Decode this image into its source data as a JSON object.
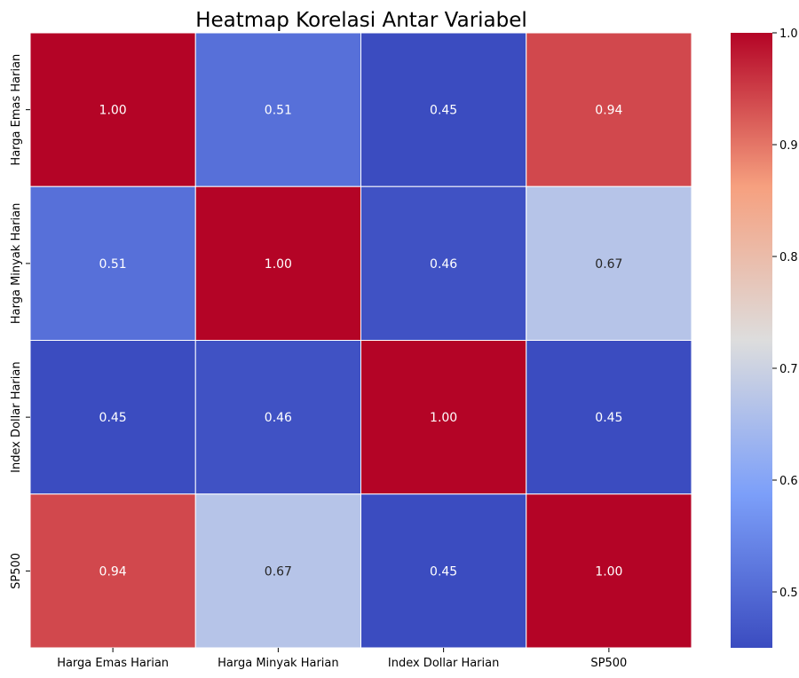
{
  "chart_data": {
    "type": "heatmap",
    "title": "Heatmap Korelasi Antar Variabel",
    "xlabel": "",
    "ylabel": "",
    "x_categories": [
      "Harga Emas Harian",
      "Harga Minyak Harian",
      "Index Dollar Harian",
      "SP500"
    ],
    "y_categories": [
      "Harga Emas Harian",
      "Harga Minyak Harian",
      "Index Dollar Harian",
      "SP500"
    ],
    "values": [
      [
        1.0,
        0.51,
        0.45,
        0.94
      ],
      [
        0.51,
        1.0,
        0.46,
        0.67
      ],
      [
        0.45,
        0.46,
        1.0,
        0.45
      ],
      [
        0.94,
        0.67,
        0.45,
        1.0
      ]
    ],
    "annotations": [
      [
        "1.00",
        "0.51",
        "0.45",
        "0.94"
      ],
      [
        "0.51",
        "1.00",
        "0.46",
        "0.67"
      ],
      [
        "0.45",
        "0.46",
        "1.00",
        "0.45"
      ],
      [
        "0.94",
        "0.67",
        "0.45",
        "1.00"
      ]
    ],
    "colormap": "coolwarm",
    "vmin": 0.45,
    "vmax": 1.0,
    "colorbar_ticks": [
      0.5,
      0.6,
      0.7,
      0.8,
      0.9,
      1.0
    ],
    "colorbar_tick_labels": [
      "0.5",
      "0.6",
      "0.7",
      "0.8",
      "0.9",
      "1.0"
    ],
    "legend": "colorbar-right",
    "grid": false
  }
}
